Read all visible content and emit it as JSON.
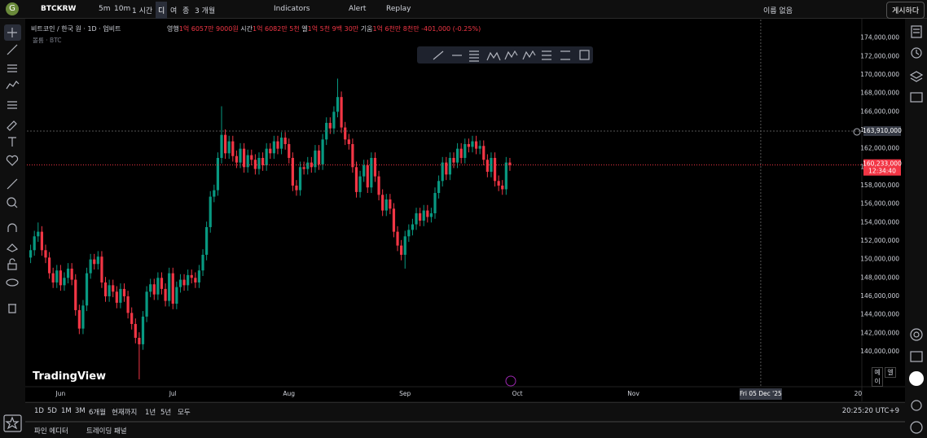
{
  "toolbar": {
    "logo": "G",
    "symbol": "BTCKRW",
    "intervals": [
      "5m",
      "10m",
      "1 시간",
      "디",
      "여",
      "종",
      "3 개월"
    ],
    "indicators": "Indicators",
    "alert": "Alert",
    "replay": "Replay",
    "layout_name": "이름 없음",
    "publish": "게시하다"
  },
  "legend": {
    "title": "비트코인 / 한국 원 · 1D · 업비트",
    "fields": [
      {
        "label": "영행",
        "value": "1억 6057만 9000원"
      },
      {
        "label": "시간",
        "value": "1억 6082만 5천"
      },
      {
        "label": "엘",
        "value": "1억 5천 9백 30만"
      },
      {
        "label": "기움",
        "value": "1억 6천만 8천만"
      }
    ],
    "change": "-401,000 (-0.25%)",
    "volume": "볼륨 · BTC"
  },
  "watermark": "TradingView",
  "side_buttons": [
    "예이",
    "엘"
  ],
  "range_bar": {
    "ranges": [
      "1D",
      "5D",
      "1M",
      "3M",
      "6개월",
      "현재까지",
      "1년",
      "5년",
      "모두"
    ],
    "clock": "20:25:20 UTC+9"
  },
  "footer": {
    "tabs": [
      "파인 에디터",
      "트레이딩 패널"
    ]
  },
  "chart_data": {
    "type": "candlestick",
    "up_color": "#089981",
    "down_color": "#f23645",
    "grid": false,
    "xlim": [
      -1,
      222
    ],
    "ylim": [
      136200000,
      176000000
    ],
    "xticks": [
      {
        "value": 8,
        "label": "Jun"
      },
      {
        "value": 38,
        "label": "Jul"
      },
      {
        "value": 69,
        "label": "Aug"
      },
      {
        "value": 100,
        "label": "Sep"
      },
      {
        "value": 130,
        "label": "Oct"
      },
      {
        "value": 161,
        "label": "Nov"
      },
      {
        "value": 221,
        "label": "20"
      }
    ],
    "yticks": [
      {
        "value": 140000000,
        "label": "140,000,000"
      },
      {
        "value": 142000000,
        "label": "142,000,000"
      },
      {
        "value": 144000000,
        "label": "144,000,000"
      },
      {
        "value": 146000000,
        "label": "146,000,000"
      },
      {
        "value": 148000000,
        "label": "148,000,000"
      },
      {
        "value": 150000000,
        "label": "150,000,000"
      },
      {
        "value": 152000000,
        "label": "152,000,000"
      },
      {
        "value": 154000000,
        "label": "154,000,000"
      },
      {
        "value": 156000000,
        "label": "156,000,000"
      },
      {
        "value": 158000000,
        "label": "158,000,000"
      },
      {
        "value": 160000000,
        "label": "160,000,000"
      },
      {
        "value": 162000000,
        "label": "162,000,000"
      },
      {
        "value": 164000000,
        "label": "164,000,000"
      },
      {
        "value": 166000000,
        "label": "166,000,000"
      },
      {
        "value": 168000000,
        "label": "168,000,000"
      },
      {
        "value": 170000000,
        "label": "170,000,000"
      },
      {
        "value": 172000000,
        "label": "172,000,000"
      },
      {
        "value": 174000000,
        "label": "174,000,000"
      }
    ],
    "last_price": {
      "value": 160233000,
      "label": "160,233,000",
      "countdown": "12:34:40"
    },
    "crosshair": {
      "price": {
        "value": 163910000,
        "label": "163,910,000"
      },
      "time": {
        "value": 195,
        "label": "Fri 05 Dec '25"
      }
    },
    "candles": [
      [
        150200000,
        151600000,
        149600000,
        151000000
      ],
      [
        151000000,
        153100000,
        150400000,
        152500000
      ],
      [
        152500000,
        154000000,
        151900000,
        153000000
      ],
      [
        153000000,
        153600000,
        150400000,
        151000000
      ],
      [
        151000000,
        151600000,
        149600000,
        150200000
      ],
      [
        150200000,
        150800000,
        147900000,
        148500000
      ],
      [
        148500000,
        149100000,
        146900000,
        147500000
      ],
      [
        147500000,
        149400000,
        146900000,
        148800000
      ],
      [
        148800000,
        149400000,
        146600000,
        147200000
      ],
      [
        147200000,
        148600000,
        146600000,
        148000000
      ],
      [
        148000000,
        149600000,
        147400000,
        149000000
      ],
      [
        149000000,
        149600000,
        147200000,
        147800000
      ],
      [
        147800000,
        148400000,
        143900000,
        144500000
      ],
      [
        144500000,
        145100000,
        141900000,
        142500000
      ],
      [
        142500000,
        145600000,
        141900000,
        145000000
      ],
      [
        145000000,
        149100000,
        144400000,
        148500000
      ],
      [
        148500000,
        150600000,
        147900000,
        150000000
      ],
      [
        150000000,
        150600000,
        148900000,
        149500000
      ],
      [
        149500000,
        150900000,
        148900000,
        150300000
      ],
      [
        150300000,
        150900000,
        146900000,
        147500000
      ],
      [
        147500000,
        148100000,
        145400000,
        146000000
      ],
      [
        146000000,
        147800000,
        145400000,
        147200000
      ],
      [
        147200000,
        147800000,
        145900000,
        146500000
      ],
      [
        146500000,
        147100000,
        144700000,
        145300000
      ],
      [
        145300000,
        147400000,
        144700000,
        146800000
      ],
      [
        146800000,
        147400000,
        145400000,
        146000000
      ],
      [
        146000000,
        146600000,
        143600000,
        144200000
      ],
      [
        144200000,
        144800000,
        142400000,
        143000000
      ],
      [
        143000000,
        143600000,
        140900000,
        141500000
      ],
      [
        141500000,
        142100000,
        137000000,
        140800000
      ],
      [
        140800000,
        144400000,
        140200000,
        143800000
      ],
      [
        143800000,
        147100000,
        143200000,
        146500000
      ],
      [
        146500000,
        147900000,
        145900000,
        147300000
      ],
      [
        147300000,
        147900000,
        145600000,
        146200000
      ],
      [
        146200000,
        148600000,
        145600000,
        148000000
      ],
      [
        148000000,
        148600000,
        146200000,
        146800000
      ],
      [
        146800000,
        147400000,
        144900000,
        145500000
      ],
      [
        145500000,
        149100000,
        144900000,
        148500000
      ],
      [
        148500000,
        149100000,
        144600000,
        145200000
      ],
      [
        145200000,
        147600000,
        144600000,
        147000000
      ],
      [
        147000000,
        148400000,
        146400000,
        147800000
      ],
      [
        147800000,
        148400000,
        146600000,
        147200000
      ],
      [
        147200000,
        148900000,
        146600000,
        148300000
      ],
      [
        148300000,
        148900000,
        147400000,
        148000000
      ],
      [
        148000000,
        148600000,
        146900000,
        147500000
      ],
      [
        147500000,
        149400000,
        146900000,
        148800000
      ],
      [
        148800000,
        151100000,
        148200000,
        150500000
      ],
      [
        150500000,
        154100000,
        149900000,
        153500000
      ],
      [
        153500000,
        157400000,
        152900000,
        156800000
      ],
      [
        156800000,
        158100000,
        156200000,
        157500000
      ],
      [
        157500000,
        161600000,
        156900000,
        161000000
      ],
      [
        161000000,
        166600000,
        160400000,
        163500000
      ],
      [
        163500000,
        164100000,
        160900000,
        161500000
      ],
      [
        161500000,
        163400000,
        160900000,
        162800000
      ],
      [
        162800000,
        163400000,
        160600000,
        161200000
      ],
      [
        161200000,
        161800000,
        159900000,
        160500000
      ],
      [
        160500000,
        162600000,
        159900000,
        162000000
      ],
      [
        162000000,
        162600000,
        159400000,
        160000000
      ],
      [
        160000000,
        161900000,
        159400000,
        161300000
      ],
      [
        161300000,
        161900000,
        160200000,
        160800000
      ],
      [
        160800000,
        161400000,
        159200000,
        159800000
      ],
      [
        159800000,
        161600000,
        159200000,
        161000000
      ],
      [
        161000000,
        161600000,
        159600000,
        160200000
      ],
      [
        160200000,
        162600000,
        159600000,
        162000000
      ],
      [
        162000000,
        162600000,
        160900000,
        161500000
      ],
      [
        161500000,
        163400000,
        160900000,
        162800000
      ],
      [
        162800000,
        163400000,
        161400000,
        162000000
      ],
      [
        162000000,
        163800000,
        161400000,
        163200000
      ],
      [
        163200000,
        163800000,
        161900000,
        162500000
      ],
      [
        162500000,
        163100000,
        160400000,
        161000000
      ],
      [
        161000000,
        161600000,
        157400000,
        158000000
      ],
      [
        158000000,
        158600000,
        156900000,
        157500000
      ],
      [
        157500000,
        160600000,
        156900000,
        160000000
      ],
      [
        160000000,
        160600000,
        159200000,
        159800000
      ],
      [
        159800000,
        161100000,
        159200000,
        160500000
      ],
      [
        160500000,
        161100000,
        159400000,
        160000000
      ],
      [
        160000000,
        162400000,
        159400000,
        161800000
      ],
      [
        161800000,
        162400000,
        159700000,
        160300000
      ],
      [
        160300000,
        163600000,
        159700000,
        163000000
      ],
      [
        163000000,
        165400000,
        162400000,
        164800000
      ],
      [
        164800000,
        165400000,
        163600000,
        164200000
      ],
      [
        164200000,
        166600000,
        163600000,
        166000000
      ],
      [
        166000000,
        169600000,
        165400000,
        167600000
      ],
      [
        167600000,
        168200000,
        163700000,
        164300000
      ],
      [
        164300000,
        164900000,
        162400000,
        163000000
      ],
      [
        163000000,
        163600000,
        161900000,
        162500000
      ],
      [
        162500000,
        163100000,
        159400000,
        160000000
      ],
      [
        160000000,
        160600000,
        156700000,
        157300000
      ],
      [
        157300000,
        159600000,
        156700000,
        159000000
      ],
      [
        159000000,
        160800000,
        158400000,
        160200000
      ],
      [
        160200000,
        160800000,
        157200000,
        157800000
      ],
      [
        157800000,
        161600000,
        157200000,
        161000000
      ],
      [
        161000000,
        161600000,
        158400000,
        159000000
      ],
      [
        159000000,
        159600000,
        156400000,
        157000000
      ],
      [
        157000000,
        157600000,
        154700000,
        155300000
      ],
      [
        155300000,
        157100000,
        154700000,
        156500000
      ],
      [
        156500000,
        157100000,
        154900000,
        155500000
      ],
      [
        155500000,
        156100000,
        152400000,
        153000000
      ],
      [
        153000000,
        153600000,
        150900000,
        151500000
      ],
      [
        151500000,
        152100000,
        149900000,
        150500000
      ],
      [
        150500000,
        153100000,
        149000000,
        152500000
      ],
      [
        152500000,
        153800000,
        151900000,
        153200000
      ],
      [
        153200000,
        154400000,
        152600000,
        153800000
      ],
      [
        153800000,
        155600000,
        153200000,
        155000000
      ],
      [
        155000000,
        155600000,
        153600000,
        154200000
      ],
      [
        154200000,
        155900000,
        153600000,
        155300000
      ],
      [
        155300000,
        155900000,
        154000000,
        154600000
      ],
      [
        154600000,
        155600000,
        154000000,
        155000000
      ],
      [
        155000000,
        157800000,
        154400000,
        157200000
      ],
      [
        157200000,
        159100000,
        156600000,
        158500000
      ],
      [
        158500000,
        161100000,
        157900000,
        160500000
      ],
      [
        160500000,
        161100000,
        158600000,
        159200000
      ],
      [
        159200000,
        161600000,
        158600000,
        161000000
      ],
      [
        161000000,
        161600000,
        159900000,
        160500000
      ],
      [
        160500000,
        162600000,
        159900000,
        162000000
      ],
      [
        162000000,
        162600000,
        160400000,
        161000000
      ],
      [
        161000000,
        163100000,
        160400000,
        162500000
      ],
      [
        162500000,
        163100000,
        161600000,
        162200000
      ],
      [
        162200000,
        163400000,
        161600000,
        162800000
      ],
      [
        162800000,
        163400000,
        161400000,
        162000000
      ],
      [
        162000000,
        162900000,
        161400000,
        162300000
      ],
      [
        162300000,
        162900000,
        160200000,
        160800000
      ],
      [
        160800000,
        161400000,
        158900000,
        159500000
      ],
      [
        159500000,
        161600000,
        158900000,
        161000000
      ],
      [
        161000000,
        161600000,
        157900000,
        158500000
      ],
      [
        158500000,
        159100000,
        157400000,
        158000000
      ],
      [
        158000000,
        158600000,
        157000000,
        157600000
      ],
      [
        157600000,
        161100000,
        157000000,
        160500000
      ],
      [
        160500000,
        161000000,
        159600000,
        160233000
      ]
    ]
  }
}
